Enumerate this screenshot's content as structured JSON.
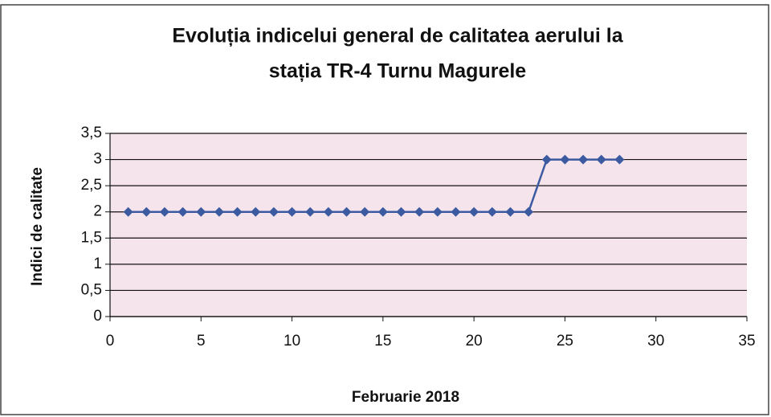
{
  "chart_data": {
    "type": "line",
    "title": [
      "Evoluția indicelui general de calitatea aerului la",
      "stația TR-4 Turnu Magurele"
    ],
    "xlabel": "Februarie 2018",
    "ylabel": "Indici de calitate",
    "x": [
      1,
      2,
      3,
      4,
      5,
      6,
      7,
      8,
      9,
      10,
      11,
      12,
      13,
      14,
      15,
      16,
      17,
      18,
      19,
      20,
      21,
      22,
      23,
      24,
      25,
      26,
      27,
      28
    ],
    "values": [
      2,
      2,
      2,
      2,
      2,
      2,
      2,
      2,
      2,
      2,
      2,
      2,
      2,
      2,
      2,
      2,
      2,
      2,
      2,
      2,
      2,
      2,
      2,
      3,
      3,
      3,
      3,
      3
    ],
    "color": "#3b5aa0",
    "xlim": [
      0,
      35
    ],
    "xticks": [
      0,
      5,
      10,
      15,
      20,
      25,
      30,
      35
    ],
    "ylim": [
      0,
      3.5
    ],
    "yticks": [
      0,
      {
        "value": 0.5,
        "label": "0,5"
      },
      1,
      {
        "value": 1.5,
        "label": "1,5"
      },
      2,
      {
        "value": 2.5,
        "label": "2,5"
      },
      3,
      {
        "value": 3.5,
        "label": "3,5"
      }
    ],
    "grid": true
  }
}
